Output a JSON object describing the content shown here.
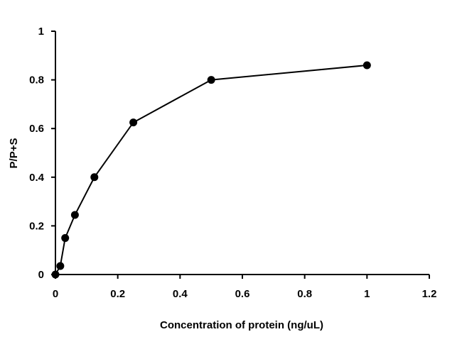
{
  "chart_data": {
    "type": "line",
    "title": "",
    "xlabel": "Concentration of protein (ng/uL)",
    "ylabel": "P/P+S",
    "xlim": [
      0,
      1.2
    ],
    "ylim": [
      0,
      1
    ],
    "xticks": [
      0,
      0.2,
      0.4,
      0.6,
      0.8,
      1,
      1.2
    ],
    "yticks": [
      0,
      0.2,
      0.4,
      0.6,
      0.8,
      1
    ],
    "xtick_labels": [
      "0",
      "0.2",
      "0.4",
      "0.6",
      "0.8",
      "1",
      "1.2"
    ],
    "ytick_labels": [
      "0",
      "0.2",
      "0.4",
      "0.6",
      "0.8",
      "1"
    ],
    "grid": false,
    "series": [
      {
        "x": [
          0,
          0.0156,
          0.03125,
          0.0625,
          0.125,
          0.25,
          0.5,
          1
        ],
        "y": [
          0,
          0.035,
          0.15,
          0.245,
          0.4,
          0.625,
          0.8,
          0.86
        ],
        "color": "#000000",
        "marker": "circle"
      }
    ]
  }
}
